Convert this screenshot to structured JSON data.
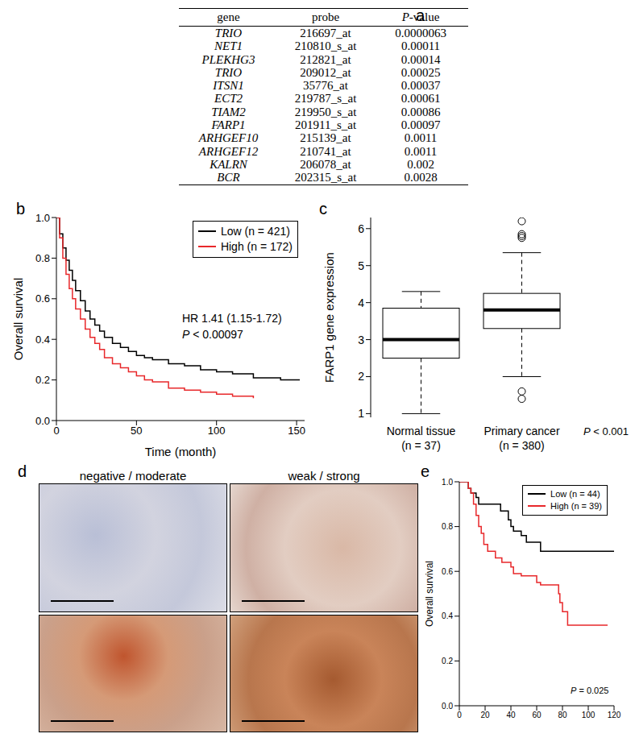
{
  "table": {
    "label": "a",
    "columns": [
      "gene",
      "probe",
      "P-value"
    ],
    "rows": [
      [
        "TRIO",
        "216697_at",
        "0.0000063"
      ],
      [
        "NET1",
        "210810_s_at",
        "0.00011"
      ],
      [
        "PLEKHG3",
        "212821_at",
        "0.00014"
      ],
      [
        "TRIO",
        "209012_at",
        "0.00025"
      ],
      [
        "ITSN1",
        "35776_at",
        "0.00037"
      ],
      [
        "ECT2",
        "219787_s_at",
        "0.00061"
      ],
      [
        "TIAM2",
        "219950_s_at",
        "0.00086"
      ],
      [
        "FARP1",
        "201911_s_at",
        "0.00097"
      ],
      [
        "ARHGEF10",
        "215139_at",
        "0.0011"
      ],
      [
        "ARHGEF12",
        "210741_at",
        "0.0011"
      ],
      [
        "KALRN",
        "206078_at",
        "0.002"
      ],
      [
        "BCR",
        "202315_s_at",
        "0.0028"
      ]
    ]
  },
  "chart_data": [
    {
      "label": "b",
      "type": "line",
      "line_style": "step",
      "x": [
        0,
        2,
        4,
        6,
        8,
        10,
        12,
        15,
        18,
        21,
        24,
        27,
        30,
        35,
        40,
        45,
        50,
        55,
        60,
        70,
        80,
        90,
        100,
        110,
        123,
        130,
        140,
        152
      ],
      "series": [
        {
          "name": "Low (n = 421)",
          "color": "#000000",
          "values": [
            1.0,
            0.92,
            0.85,
            0.79,
            0.74,
            0.69,
            0.64,
            0.59,
            0.54,
            0.5,
            0.47,
            0.44,
            0.41,
            0.38,
            0.36,
            0.34,
            0.32,
            0.31,
            0.3,
            0.28,
            0.27,
            0.25,
            0.24,
            0.23,
            0.21,
            0.21,
            0.2,
            0.2
          ]
        },
        {
          "name": "High (n = 172)",
          "color": "#e8282b",
          "values": [
            1.0,
            0.9,
            0.8,
            0.72,
            0.65,
            0.6,
            0.55,
            0.5,
            0.45,
            0.41,
            0.38,
            0.35,
            0.31,
            0.28,
            0.26,
            0.24,
            0.22,
            0.2,
            0.19,
            0.16,
            0.15,
            0.14,
            0.13,
            0.12,
            0.11,
            null,
            null,
            null
          ]
        }
      ],
      "xlim": [
        0,
        155
      ],
      "xticks": [
        0,
        50,
        100,
        150
      ],
      "ylim": [
        0,
        1
      ],
      "yticks": [
        {
          "value": 0,
          "label": "0.0"
        },
        0.2,
        0.4,
        0.6,
        0.8,
        {
          "value": 1,
          "label": "1.0"
        }
      ],
      "x_label": "Time (month)",
      "y_label": "Overall survival",
      "legend": "upper right",
      "annotations": [
        "HR 1.41 (1.15-1.72)",
        "P < 0.00097"
      ]
    },
    {
      "label": "c",
      "type": "box",
      "categories": [
        "Normal tissue\n(n = 37)",
        "Primary cancer\n(n = 380)"
      ],
      "boxes": [
        {
          "min": 1.0,
          "q1": 2.5,
          "median": 3.0,
          "q3": 3.85,
          "max": 4.3,
          "outliers": []
        },
        {
          "min": 2.0,
          "q1": 3.3,
          "median": 3.8,
          "q3": 4.25,
          "max": 5.35,
          "outliers": [
            5.75,
            5.8,
            5.85,
            6.2,
            1.6,
            1.4
          ]
        }
      ],
      "ylim": [
        0.9,
        6.3
      ],
      "yticks": [
        1,
        2,
        3,
        4,
        5,
        6
      ],
      "y_label": "FARP1 gene expression",
      "annotations": [
        "P < 0.001"
      ]
    },
    {
      "label": "e",
      "type": "line",
      "line_style": "step",
      "x": [
        0,
        5,
        7,
        9,
        11,
        13,
        15,
        17,
        19,
        22,
        28,
        32,
        33,
        38,
        40,
        42,
        48,
        52,
        60,
        63,
        77,
        78,
        80,
        84,
        115,
        120
      ],
      "series": [
        {
          "name": "Low (n = 44)",
          "color": "#000000",
          "values": [
            1.0,
            1.0,
            0.97,
            0.95,
            0.95,
            0.93,
            0.9,
            0.9,
            0.9,
            0.9,
            0.9,
            0.87,
            0.87,
            0.83,
            0.8,
            0.78,
            0.76,
            0.73,
            0.73,
            0.69,
            0.69,
            0.69,
            0.69,
            0.69,
            0.69,
            0.69
          ]
        },
        {
          "name": "High (n = 39)",
          "color": "#e8282b",
          "values": [
            1.0,
            1.0,
            0.97,
            0.95,
            0.9,
            0.85,
            0.8,
            0.77,
            0.72,
            0.69,
            0.66,
            0.66,
            0.64,
            0.64,
            0.62,
            0.59,
            0.58,
            0.58,
            0.55,
            0.54,
            0.5,
            0.46,
            0.42,
            0.36,
            0.36,
            null
          ]
        }
      ],
      "xlim": [
        0,
        120
      ],
      "xticks": [
        0,
        20,
        40,
        60,
        80,
        100,
        120
      ],
      "ylim": [
        0,
        1
      ],
      "yticks": [
        {
          "value": 0,
          "label": "0.0"
        },
        0.2,
        0.4,
        0.6,
        0.8,
        {
          "value": 1,
          "label": "1.0"
        }
      ],
      "y_label": "Overall survival",
      "legend": "upper right",
      "annotations": [
        "P = 0.025"
      ]
    }
  ],
  "images": {
    "label": "d",
    "columns": [
      "negative / moderate",
      "weak / strong"
    ]
  }
}
